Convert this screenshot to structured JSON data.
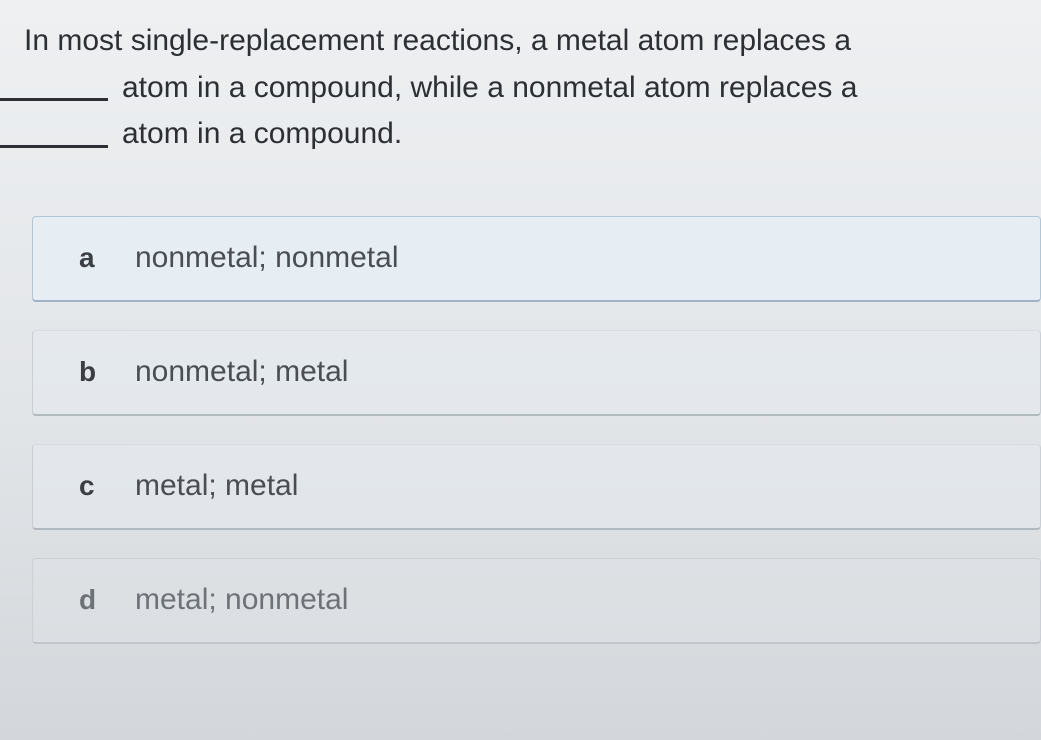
{
  "question": {
    "line1": "In most single-replacement reactions, a metal atom replaces a",
    "line2_after_blank": "atom in a compound, while a nonmetal atom replaces a",
    "line3_after_blank": "atom in a compound."
  },
  "options": [
    {
      "letter": "a",
      "text": "nonmetal; nonmetal",
      "selected": true
    },
    {
      "letter": "b",
      "text": "nonmetal; metal",
      "selected": false
    },
    {
      "letter": "c",
      "text": "metal; metal",
      "selected": false
    },
    {
      "letter": "d",
      "text": "metal; nonmetal",
      "selected": false
    }
  ],
  "styles": {
    "background_gradient_top": "#eef0f2",
    "background_gradient_bottom": "#d3d7db",
    "text_color": "#2c2f33",
    "option_bg": "#e4e8ec",
    "option_selected_bg": "#e6eef4",
    "option_border": "#9aa4ae",
    "font_size_question": 30,
    "font_size_option": 30
  }
}
